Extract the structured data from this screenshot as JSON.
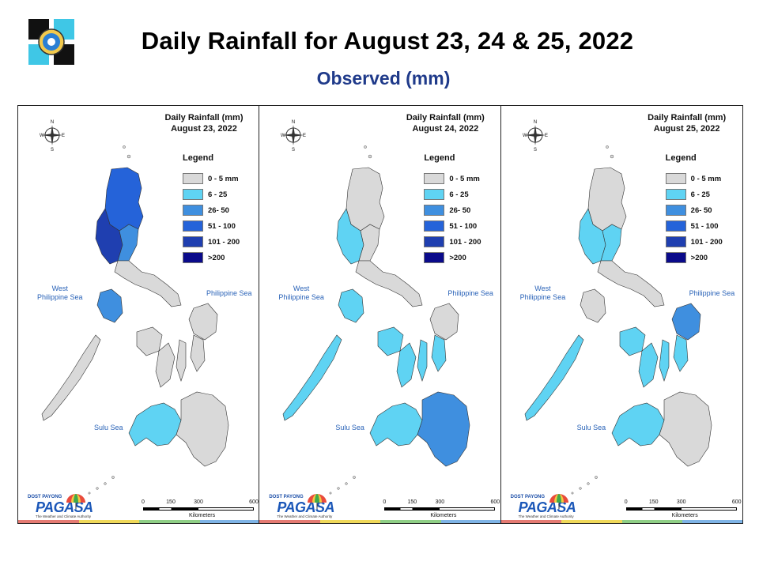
{
  "header": {
    "title": "Daily Rainfall for August 23, 24 & 25, 2022",
    "subtitle": "Observed (mm)"
  },
  "legend": {
    "title": "Legend",
    "items": [
      {
        "label": "0 - 5 mm",
        "color": "#d9d9d9"
      },
      {
        "label": "6 - 25",
        "color": "#5fd3f3"
      },
      {
        "label": "26- 50",
        "color": "#3f8fdf"
      },
      {
        "label": "51 - 100",
        "color": "#2563d9"
      },
      {
        "label": "101 - 200",
        "color": "#1f3fb0"
      },
      {
        "label": ">200",
        "color": "#0a0a8a"
      }
    ]
  },
  "labels": {
    "west_sea_line1": "West",
    "west_sea_line2": "Philippine Sea",
    "philippine_sea": "Philippine Sea",
    "sulu_sea": "Sulu Sea",
    "compass_n": "N",
    "compass_s": "S",
    "compass_e": "E",
    "compass_w": "W",
    "scale_ticks": [
      "0",
      "150",
      "300",
      "600"
    ],
    "scale_unit": "Kilometers",
    "pagasa_small": "DOST PAYONG",
    "pagasa_big": "PAGASA",
    "pagasa_tagline": "The Weather and Climate Authority"
  },
  "panels": [
    {
      "title_line1": "Daily Rainfall (mm)",
      "title_line2": "August 23, 2022",
      "luzon_north": "#2563d9",
      "luzon_west": "#1f3fb0",
      "luzon_central": "#3f8fdf",
      "luzon_south": "#d9d9d9",
      "mindoro": "#3f8fdf",
      "palawan": "#d9d9d9",
      "visayas": "#d9d9d9",
      "samar": "#d9d9d9",
      "mindanao_west": "#5fd3f3",
      "mindanao_east": "#d9d9d9"
    },
    {
      "title_line1": "Daily Rainfall (mm)",
      "title_line2": "August 24, 2022",
      "luzon_north": "#d9d9d9",
      "luzon_west": "#5fd3f3",
      "luzon_central": "#d9d9d9",
      "luzon_south": "#d9d9d9",
      "mindoro": "#5fd3f3",
      "palawan": "#5fd3f3",
      "visayas": "#5fd3f3",
      "samar": "#d9d9d9",
      "mindanao_west": "#5fd3f3",
      "mindanao_east": "#3f8fdf"
    },
    {
      "title_line1": "Daily Rainfall (mm)",
      "title_line2": "August 25, 2022",
      "luzon_north": "#d9d9d9",
      "luzon_west": "#5fd3f3",
      "luzon_central": "#5fd3f3",
      "luzon_south": "#d9d9d9",
      "mindoro": "#d9d9d9",
      "palawan": "#5fd3f3",
      "visayas": "#5fd3f3",
      "samar": "#3f8fdf",
      "mindanao_west": "#5fd3f3",
      "mindanao_east": "#d9d9d9"
    }
  ]
}
